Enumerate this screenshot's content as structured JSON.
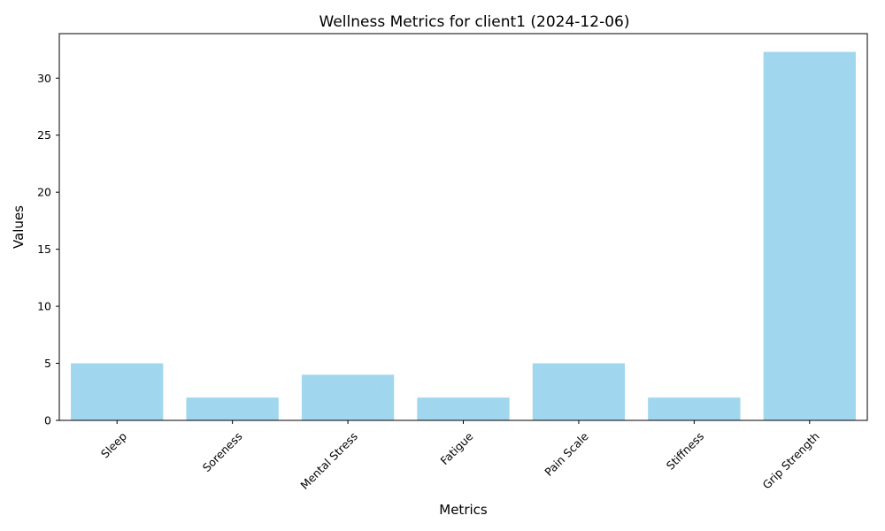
{
  "chart_data": {
    "type": "bar",
    "title": "Wellness Metrics for client1 (2024-12-06)",
    "xlabel": "Metrics",
    "ylabel": "Values",
    "categories": [
      "Sleep",
      "Soreness",
      "Mental Stress",
      "Fatigue",
      "Pain Scale",
      "Stiffness",
      "Grip Strength"
    ],
    "values": [
      5,
      2,
      4,
      2,
      5,
      2,
      32.3
    ],
    "ylim": [
      0,
      33.9
    ],
    "yticks": [
      0,
      5,
      10,
      15,
      20,
      25,
      30
    ],
    "grid": false,
    "legend": "none",
    "bar_color": "#a1d7ee",
    "tick_label_rotation": 45
  }
}
